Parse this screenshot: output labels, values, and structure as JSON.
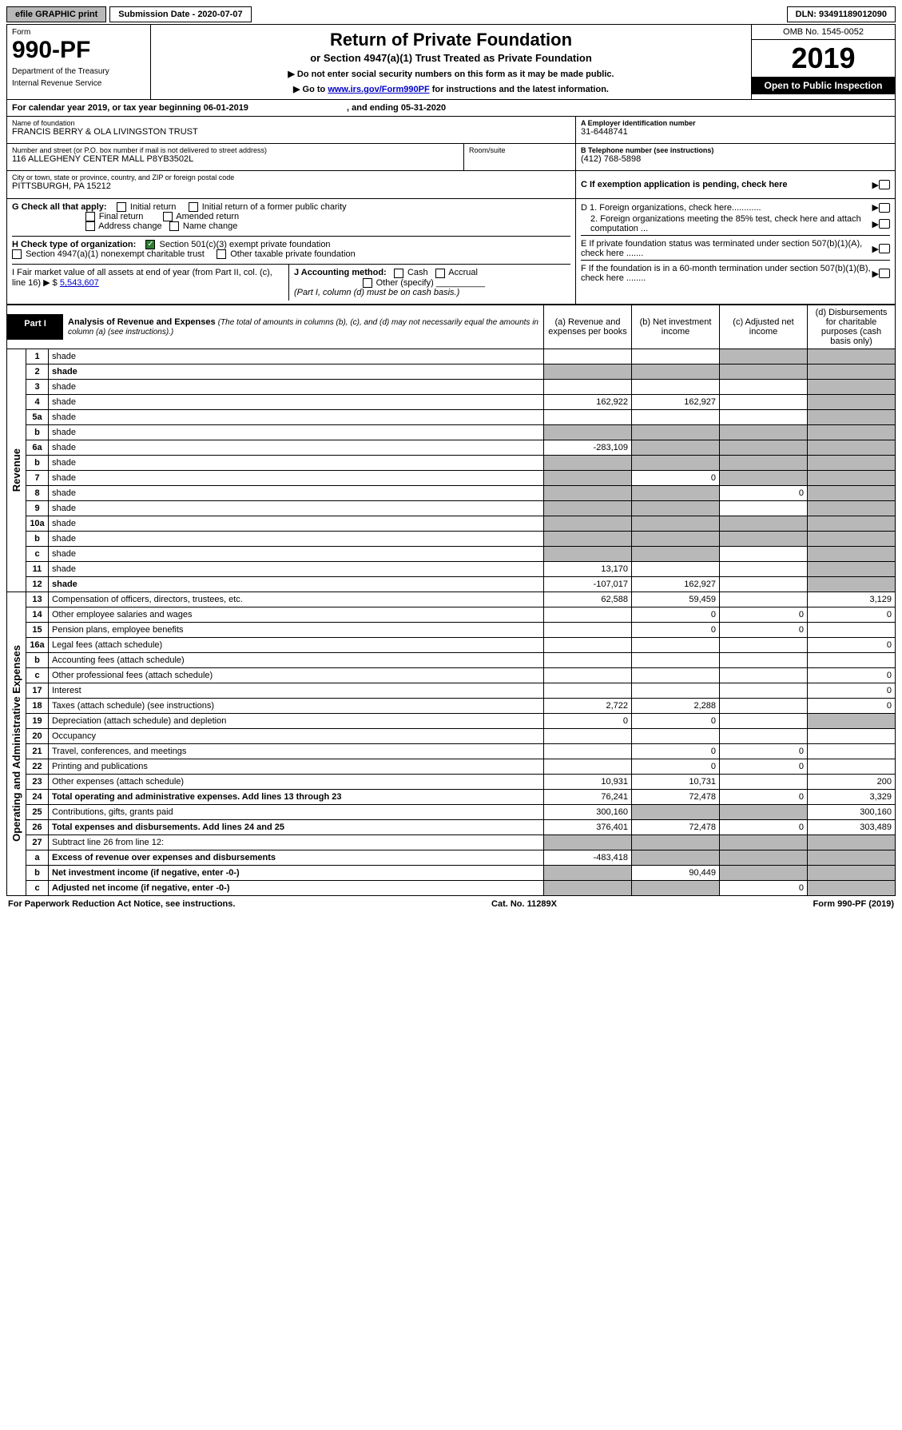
{
  "topbar": {
    "efile": "efile GRAPHIC print",
    "submission": "Submission Date - 2020-07-07",
    "dln": "DLN: 93491189012090"
  },
  "head": {
    "form_label": "Form",
    "form_num": "990-PF",
    "dept": "Department of the Treasury",
    "irs": "Internal Revenue Service",
    "title": "Return of Private Foundation",
    "subtitle": "or Section 4947(a)(1) Trust Treated as Private Foundation",
    "note1": "▶ Do not enter social security numbers on this form as it may be made public.",
    "note2_pre": "▶ Go to ",
    "note2_link": "www.irs.gov/Form990PF",
    "note2_post": " for instructions and the latest information.",
    "omb": "OMB No. 1545-0052",
    "year": "2019",
    "open": "Open to Public Inspection"
  },
  "calyear": {
    "pre": "For calendar year 2019, or tax year beginning ",
    "begin": "06-01-2019",
    "mid": " , and ending ",
    "end": "05-31-2020"
  },
  "info": {
    "name_lbl": "Name of foundation",
    "name": "FRANCIS BERRY & OLA LIVINGSTON TRUST",
    "addr_lbl": "Number and street (or P.O. box number if mail is not delivered to street address)",
    "addr": "116 ALLEGHENY CENTER MALL P8YB3502L",
    "room_lbl": "Room/suite",
    "city_lbl": "City or town, state or province, country, and ZIP or foreign postal code",
    "city": "PITTSBURGH, PA  15212",
    "a_lbl": "A Employer identification number",
    "a_val": "31-6448741",
    "b_lbl": "B Telephone number (see instructions)",
    "b_val": "(412) 768-5898",
    "c_lbl": "C If exemption application is pending, check here",
    "d1": "D 1. Foreign organizations, check here............",
    "d2": "2. Foreign organizations meeting the 85% test, check here and attach computation ...",
    "e": "E  If private foundation status was terminated under section 507(b)(1)(A), check here .......",
    "f": "F  If the foundation is in a 60-month termination under section 507(b)(1)(B), check here ........"
  },
  "g": {
    "lbl": "G Check all that apply:",
    "opts": [
      "Initial return",
      "Initial return of a former public charity",
      "Final return",
      "Amended return",
      "Address change",
      "Name change"
    ]
  },
  "h": {
    "lbl": "H Check type of organization:",
    "o1": "Section 501(c)(3) exempt private foundation",
    "o2": "Section 4947(a)(1) nonexempt charitable trust",
    "o3": "Other taxable private foundation"
  },
  "i": {
    "lbl": "I Fair market value of all assets at end of year (from Part II, col. (c), line 16) ▶ $",
    "val": "5,543,607"
  },
  "j": {
    "lbl": "J Accounting method:",
    "cash": "Cash",
    "accrual": "Accrual",
    "other": "Other (specify)",
    "note": "(Part I, column (d) must be on cash basis.)"
  },
  "part1": {
    "label": "Part I",
    "title": "Analysis of Revenue and Expenses",
    "note": "(The total of amounts in columns (b), (c), and (d) may not necessarily equal the amounts in column (a) (see instructions).)",
    "col_a": "(a)    Revenue and expenses per books",
    "col_b": "(b)   Net investment income",
    "col_c": "(c)   Adjusted net income",
    "col_d": "(d)   Disbursements for charitable purposes (cash basis only)"
  },
  "side": {
    "rev": "Revenue",
    "exp": "Operating and Administrative Expenses"
  },
  "rows": [
    {
      "n": "1",
      "d": "shade",
      "a": "",
      "b": "",
      "c": "shade"
    },
    {
      "n": "2",
      "d": "shade",
      "a": "shade",
      "b": "shade",
      "c": "shade",
      "bold": true
    },
    {
      "n": "3",
      "d": "shade",
      "a": "",
      "b": "",
      "c": ""
    },
    {
      "n": "4",
      "d": "shade",
      "a": "162,922",
      "b": "162,927",
      "c": ""
    },
    {
      "n": "5a",
      "d": "shade",
      "a": "",
      "b": "",
      "c": ""
    },
    {
      "n": "b",
      "d": "shade",
      "a": "shade",
      "b": "shade",
      "c": "shade"
    },
    {
      "n": "6a",
      "d": "shade",
      "a": "-283,109",
      "b": "shade",
      "c": "shade"
    },
    {
      "n": "b",
      "d": "shade",
      "a": "shade",
      "b": "shade",
      "c": "shade"
    },
    {
      "n": "7",
      "d": "shade",
      "a": "shade",
      "b": "0",
      "c": "shade"
    },
    {
      "n": "8",
      "d": "shade",
      "a": "shade",
      "b": "shade",
      "c": "0"
    },
    {
      "n": "9",
      "d": "shade",
      "a": "shade",
      "b": "shade",
      "c": ""
    },
    {
      "n": "10a",
      "d": "shade",
      "a": "shade",
      "b": "shade",
      "c": "shade"
    },
    {
      "n": "b",
      "d": "shade",
      "a": "shade",
      "b": "shade",
      "c": "shade"
    },
    {
      "n": "c",
      "d": "shade",
      "a": "shade",
      "b": "shade",
      "c": ""
    },
    {
      "n": "11",
      "d": "shade",
      "a": "13,170",
      "b": "",
      "c": ""
    },
    {
      "n": "12",
      "d": "shade",
      "a": "-107,017",
      "b": "162,927",
      "c": "",
      "bold": true
    }
  ],
  "exprows": [
    {
      "n": "13",
      "d": "3,129",
      "a": "62,588",
      "b": "59,459",
      "c": ""
    },
    {
      "n": "14",
      "d": "0",
      "a": "",
      "b": "0",
      "c": "0"
    },
    {
      "n": "15",
      "d": "",
      "a": "",
      "b": "0",
      "c": "0"
    },
    {
      "n": "16a",
      "d": "0",
      "a": "",
      "b": "",
      "c": ""
    },
    {
      "n": "b",
      "d": "",
      "a": "",
      "b": "",
      "c": ""
    },
    {
      "n": "c",
      "d": "0",
      "a": "",
      "b": "",
      "c": ""
    },
    {
      "n": "17",
      "d": "0",
      "a": "",
      "b": "",
      "c": ""
    },
    {
      "n": "18",
      "d": "0",
      "a": "2,722",
      "b": "2,288",
      "c": ""
    },
    {
      "n": "19",
      "d": "shade",
      "a": "0",
      "b": "0",
      "c": ""
    },
    {
      "n": "20",
      "d": "",
      "a": "",
      "b": "",
      "c": ""
    },
    {
      "n": "21",
      "d": "",
      "a": "",
      "b": "0",
      "c": "0"
    },
    {
      "n": "22",
      "d": "",
      "a": "",
      "b": "0",
      "c": "0"
    },
    {
      "n": "23",
      "d": "200",
      "a": "10,931",
      "b": "10,731",
      "c": ""
    },
    {
      "n": "24",
      "d": "3,329",
      "a": "76,241",
      "b": "72,478",
      "c": "0",
      "bold": true
    },
    {
      "n": "25",
      "d": "300,160",
      "a": "300,160",
      "b": "shade",
      "c": "shade"
    },
    {
      "n": "26",
      "d": "303,489",
      "a": "376,401",
      "b": "72,478",
      "c": "0",
      "bold": true
    },
    {
      "n": "27",
      "d": "shade",
      "a": "shade",
      "b": "shade",
      "c": "shade"
    },
    {
      "n": "a",
      "d": "shade",
      "a": "-483,418",
      "b": "shade",
      "c": "shade",
      "bold": true
    },
    {
      "n": "b",
      "d": "shade",
      "a": "shade",
      "b": "90,449",
      "c": "shade",
      "bold": true
    },
    {
      "n": "c",
      "d": "shade",
      "a": "shade",
      "b": "shade",
      "c": "0",
      "bold": true
    }
  ],
  "footer": {
    "left": "For Paperwork Reduction Act Notice, see instructions.",
    "mid": "Cat. No. 11289X",
    "right": "Form 990-PF (2019)"
  }
}
